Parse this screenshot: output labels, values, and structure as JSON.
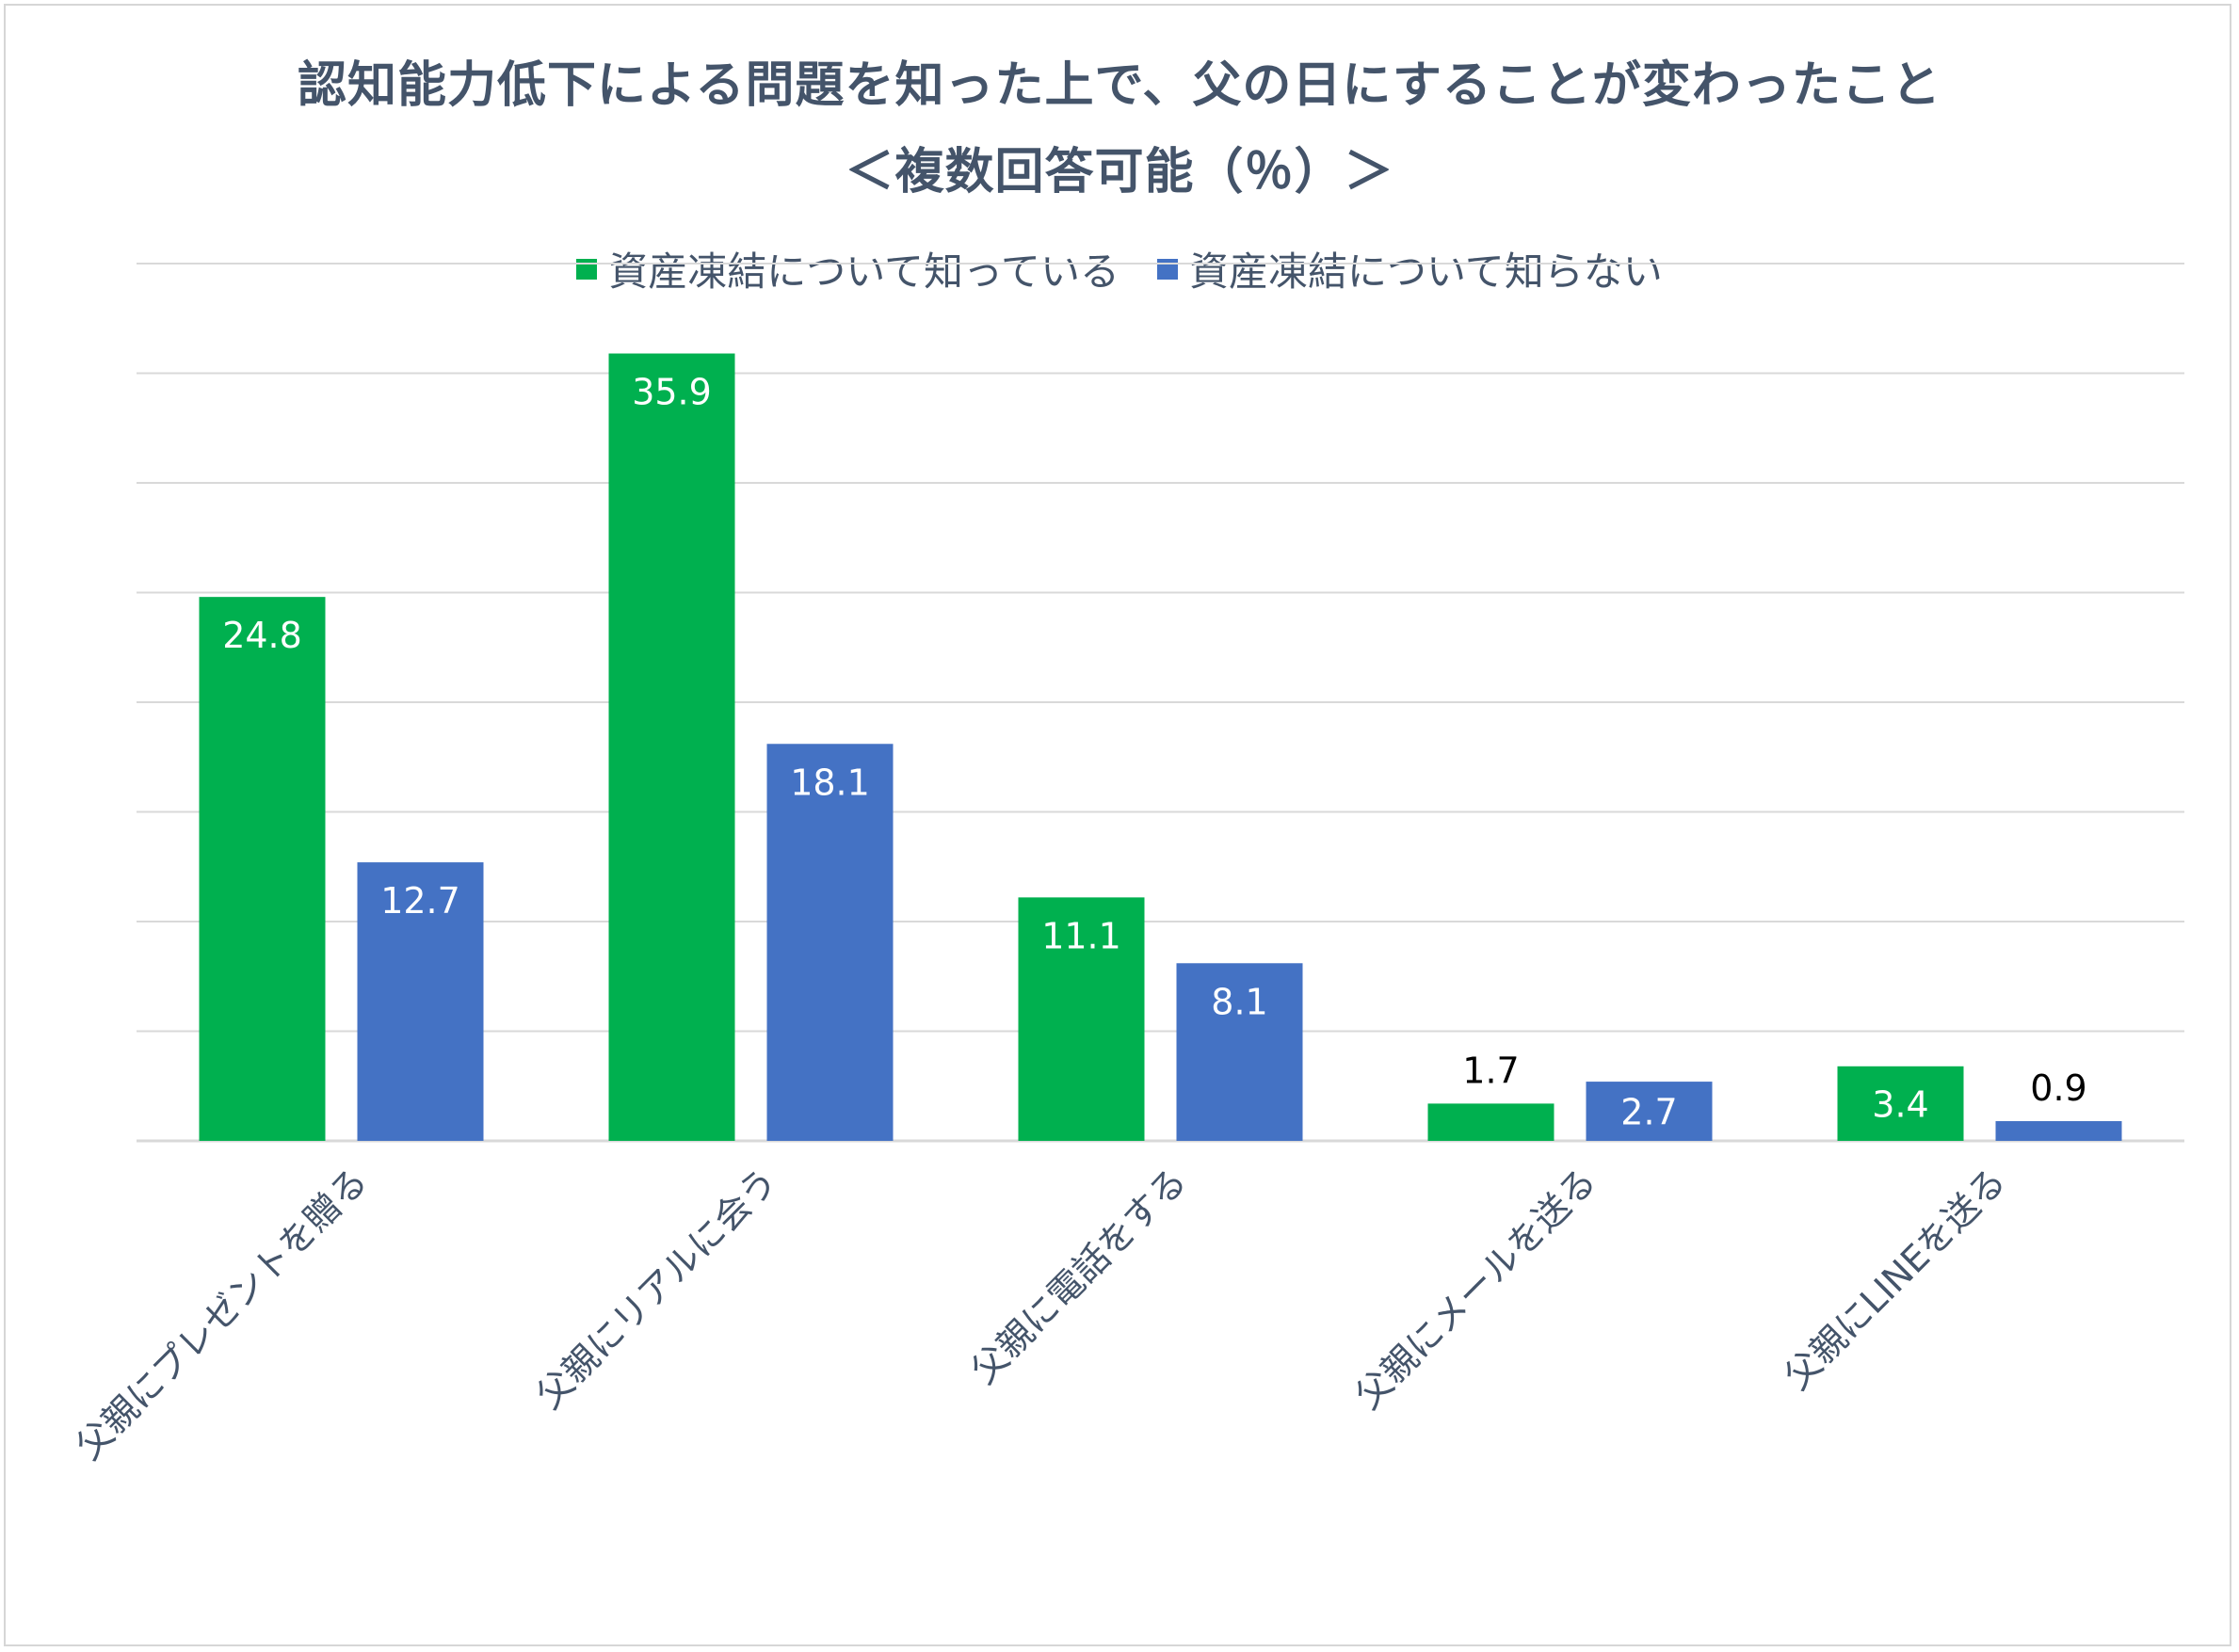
{
  "chart_data": {
    "type": "bar",
    "title": "認知能力低下による問題を知った上で、父の日にすることが変わったこと",
    "subtitle": "＜複数回答可能（％）＞",
    "xlabel": "",
    "ylabel": "",
    "ylim": [
      0,
      40
    ],
    "grid": true,
    "legend_position": "top",
    "categories": [
      "父親にプレゼントを贈る",
      "父親にリアルに会う",
      "父親に電話をする",
      "父親にメールを送る",
      "父親にLINEを送る"
    ],
    "series": [
      {
        "name": "資産凍結について知っている",
        "color": "#00b04f",
        "values": [
          24.8,
          35.9,
          11.1,
          1.7,
          3.4
        ]
      },
      {
        "name": "資産凍結について知らない",
        "color": "#4472c4",
        "values": [
          12.7,
          18.1,
          8.1,
          2.7,
          0.9
        ]
      }
    ]
  }
}
